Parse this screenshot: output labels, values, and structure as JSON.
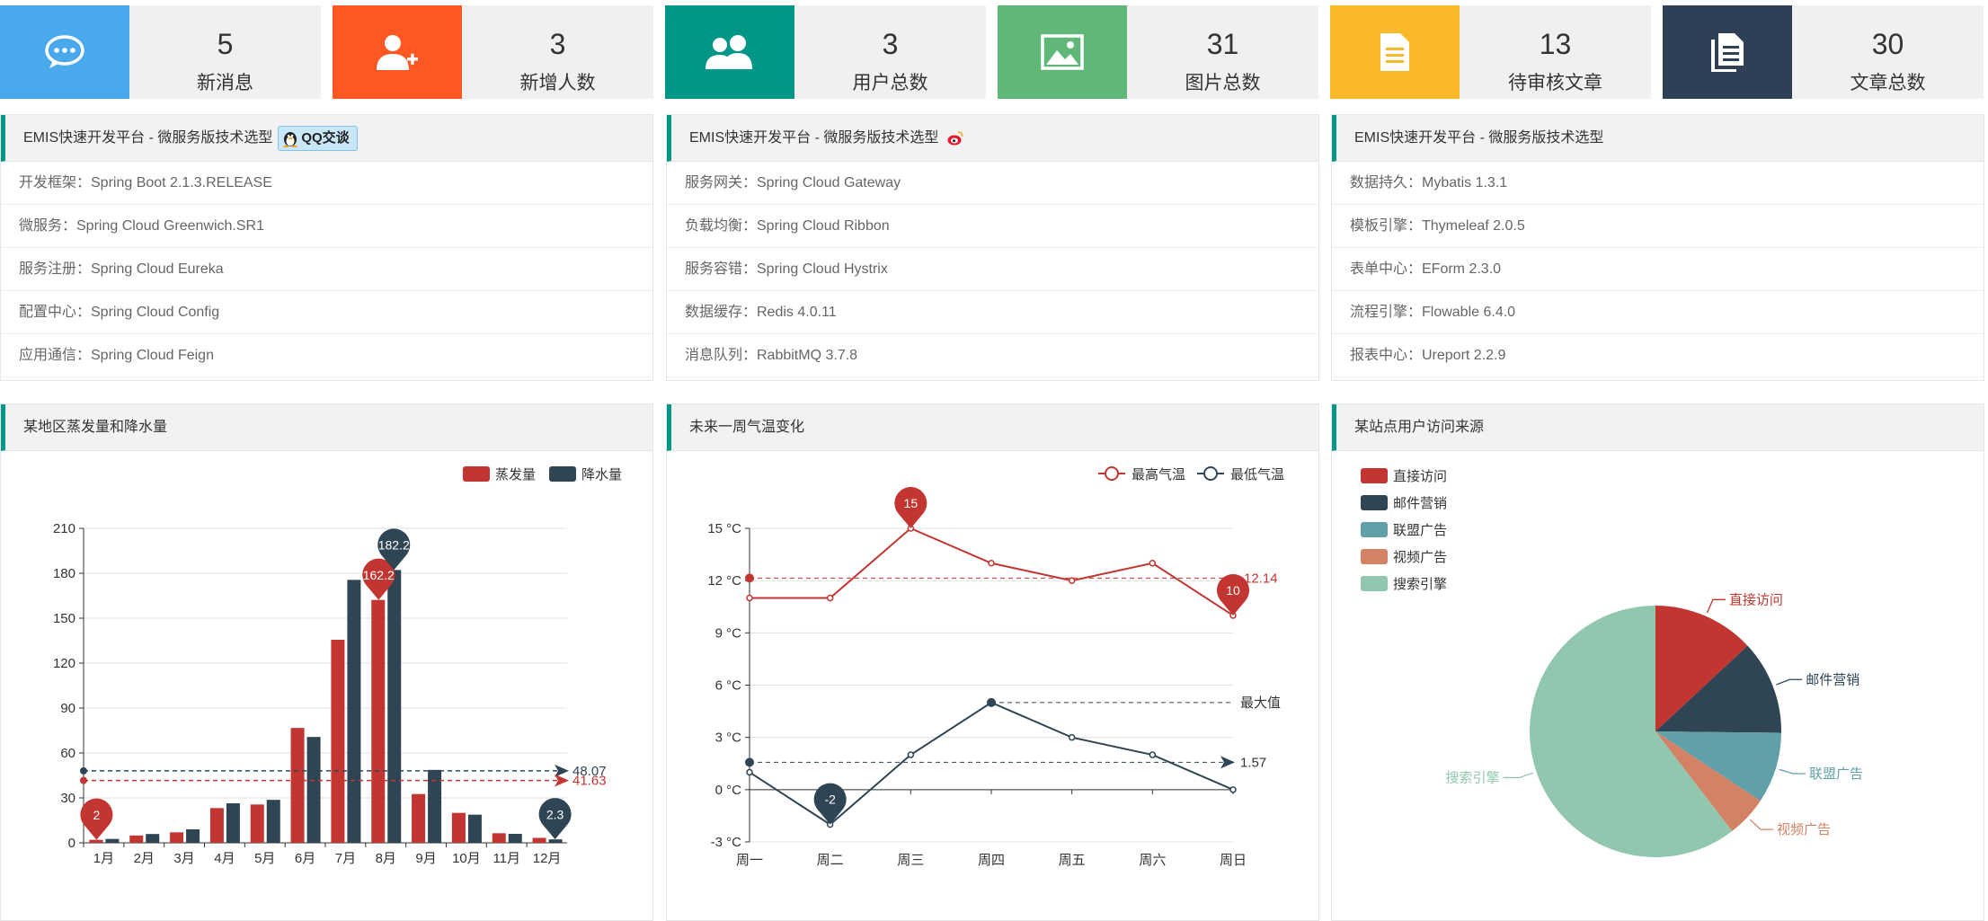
{
  "stats": [
    {
      "value": "5",
      "label": "新消息",
      "color": "#4aa9ec",
      "icon": "chat-bubble-icon"
    },
    {
      "value": "3",
      "label": "新增人数",
      "color": "#ff5722",
      "icon": "add-user-icon"
    },
    {
      "value": "3",
      "label": "用户总数",
      "color": "#009688",
      "icon": "users-icon"
    },
    {
      "value": "31",
      "label": "图片总数",
      "color": "#5fb878",
      "icon": "image-icon"
    },
    {
      "value": "13",
      "label": "待审核文章",
      "color": "#fbb829",
      "icon": "document-icon"
    },
    {
      "value": "30",
      "label": "文章总数",
      "color": "#2f4056",
      "icon": "documents-icon"
    }
  ],
  "tech_panels": [
    {
      "title": "EMIS快速开发平台 - 微服务版技术选型",
      "badge": "QQ交谈",
      "rows": [
        "开发框架：Spring Boot 2.1.3.RELEASE",
        "微服务：Spring Cloud Greenwich.SR1",
        "服务注册：Spring Cloud Eureka",
        "配置中心：Spring Cloud Config",
        "应用通信：Spring Cloud Feign"
      ]
    },
    {
      "title": "EMIS快速开发平台 - 微服务版技术选型",
      "rows": [
        "服务网关：Spring Cloud Gateway",
        "负载均衡：Spring Cloud Ribbon",
        "服务容错：Spring Cloud Hystrix",
        "数据缓存：Redis 4.0.11",
        "消息队列：RabbitMQ 3.7.8"
      ]
    },
    {
      "title": "EMIS快速开发平台 - 微服务版技术选型",
      "rows": [
        "数据持久：Mybatis 1.3.1",
        "模板引擎：Thymeleaf 2.0.5",
        "表单中心：EForm 2.3.0",
        "流程引擎：Flowable 6.4.0",
        "报表中心：Ureport 2.2.9"
      ]
    }
  ],
  "chart_panels": [
    "某地区蒸发量和降水量",
    "未来一周气温变化",
    "某站点用户访问来源"
  ],
  "colors": {
    "accent": "#009688",
    "red": "#c23531",
    "navy": "#2f4554"
  },
  "chart_data": [
    {
      "type": "bar",
      "categories": [
        "1月",
        "2月",
        "3月",
        "4月",
        "5月",
        "6月",
        "7月",
        "8月",
        "9月",
        "10月",
        "11月",
        "12月"
      ],
      "series": [
        {
          "name": "蒸发量",
          "values": [
            2.0,
            4.9,
            7.0,
            23.2,
            25.6,
            76.7,
            135.6,
            162.2,
            32.6,
            20.0,
            6.4,
            3.3
          ]
        },
        {
          "name": "降水量",
          "values": [
            2.6,
            5.9,
            9.0,
            26.4,
            28.7,
            70.7,
            175.6,
            182.2,
            48.7,
            18.8,
            6.0,
            2.3
          ]
        }
      ],
      "ylim": [
        0,
        210
      ],
      "yticks": [
        "0",
        "30",
        "60",
        "90",
        "120",
        "150",
        "180",
        "210"
      ],
      "markpoints": [
        "2",
        "162.2",
        "182.2",
        "2.3"
      ],
      "marklines": [
        "41.63",
        "48.07"
      ],
      "legend": "top-right"
    },
    {
      "type": "line",
      "categories": [
        "周一",
        "周二",
        "周三",
        "周四",
        "周五",
        "周六",
        "周日"
      ],
      "series": [
        {
          "name": "最高气温",
          "values": [
            11,
            11,
            15,
            13,
            12,
            13,
            10
          ]
        },
        {
          "name": "最低气温",
          "values": [
            1,
            -2,
            2,
            5,
            3,
            2,
            0
          ]
        }
      ],
      "ylim": [
        -3,
        15
      ],
      "yticks": [
        "-3 °C",
        "0 °C",
        "3 °C",
        "6 °C",
        "9 °C",
        "12 °C",
        "15 °C"
      ],
      "markpoints": [
        "15",
        "10",
        "-2"
      ],
      "marklines": [
        "12.14",
        "1.57",
        "最大值"
      ],
      "legend": "top-right"
    },
    {
      "type": "pie",
      "labels": [
        "直接访问",
        "邮件营销",
        "联盟广告",
        "视频广告",
        "搜索引擎"
      ],
      "values": [
        335,
        310,
        234,
        135,
        1548
      ],
      "colors": [
        "#c23531",
        "#2f4554",
        "#61a0a8",
        "#d48265",
        "#91c7ae"
      ],
      "legend": "top-left"
    }
  ]
}
